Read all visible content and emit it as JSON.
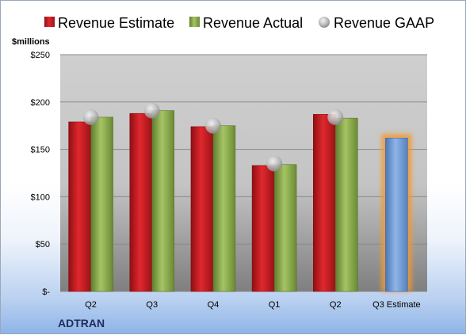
{
  "chart_data": {
    "type": "bar",
    "ylabel": "$millions",
    "ylim": [
      0,
      250
    ],
    "yticks": [
      0,
      50,
      100,
      150,
      200,
      250
    ],
    "ytick_labels": [
      "$-",
      "$50",
      "$100",
      "$150",
      "$200",
      "$250"
    ],
    "categories": [
      "Q2",
      "Q3",
      "Q4",
      "Q1",
      "Q2",
      "Q3 Estimate"
    ],
    "series": [
      {
        "name": "Revenue Estimate",
        "type": "bar",
        "color": "#c0181e",
        "values": [
          179,
          188,
          174,
          133,
          187,
          null
        ]
      },
      {
        "name": "Revenue Actual",
        "type": "bar",
        "color": "#8aac4a",
        "values": [
          184,
          191,
          175,
          134,
          183,
          null
        ]
      },
      {
        "name": "Revenue GAAP",
        "type": "marker",
        "color": "#b8b8b8",
        "values": [
          184,
          191,
          175,
          135,
          184,
          null
        ]
      },
      {
        "name": "Q3 Estimate",
        "type": "bar",
        "color": "#6f9bd6",
        "values": [
          null,
          null,
          null,
          null,
          null,
          162
        ]
      }
    ],
    "highlight_color": "#f39a30",
    "grid": true,
    "legend": "top"
  },
  "company": "ADTRAN"
}
